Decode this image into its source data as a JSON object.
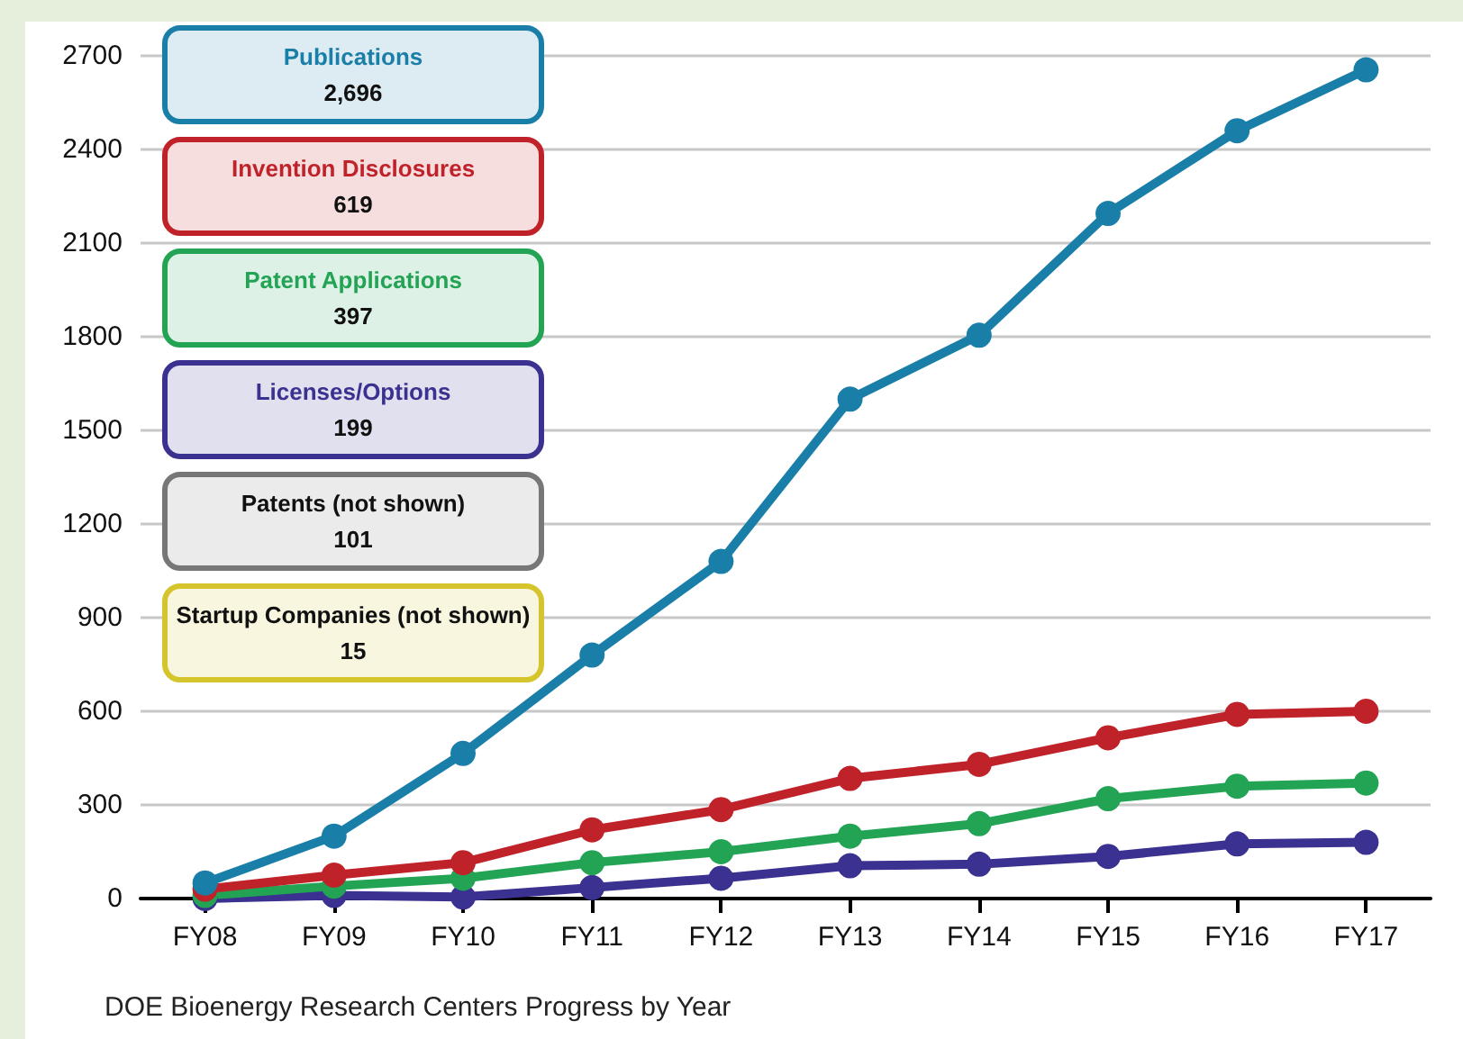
{
  "chart_data": {
    "type": "line",
    "categories": [
      "FY08",
      "FY09",
      "FY10",
      "FY11",
      "FY12",
      "FY13",
      "FY14",
      "FY15",
      "FY16",
      "FY17"
    ],
    "series": [
      {
        "name": "Publications",
        "color": "#1a7fa8",
        "values": [
          50,
          200,
          465,
          780,
          1080,
          1600,
          1805,
          2195,
          2460,
          2655
        ]
      },
      {
        "name": "Invention Disclosures",
        "color": "#c0222a",
        "values": [
          30,
          75,
          115,
          220,
          285,
          385,
          430,
          515,
          590,
          600
        ]
      },
      {
        "name": "Patent Applications",
        "color": "#23a455",
        "values": [
          10,
          40,
          65,
          115,
          150,
          200,
          240,
          320,
          360,
          370
        ]
      },
      {
        "name": "Licenses/Options",
        "color": "#3a3190",
        "values": [
          0,
          10,
          5,
          35,
          65,
          105,
          110,
          135,
          175,
          180
        ]
      }
    ],
    "ylim": [
      0,
      2700
    ],
    "yticks": [
      0,
      300,
      600,
      900,
      1200,
      1500,
      1800,
      2100,
      2400,
      2700
    ],
    "grid": "y",
    "legend": "top left",
    "marker": "circle",
    "line_style": "solid",
    "annotations": [
      "2,696",
      "619",
      "397",
      "199",
      "Patents (not shown)",
      "101",
      "Startup Companies (not shown)",
      "15",
      "DOE Bioenergy Research Centers Progress by Year"
    ]
  }
}
